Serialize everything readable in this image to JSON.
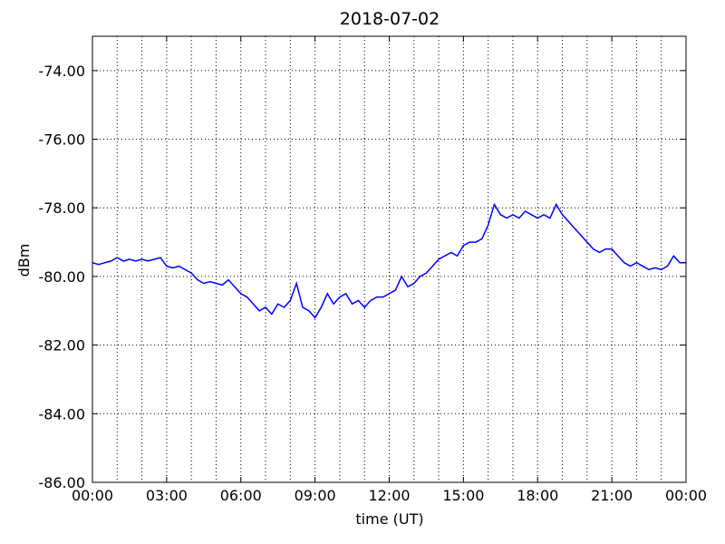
{
  "chart_data": {
    "type": "line",
    "title": "2018-07-02",
    "x_label": "time (UT)",
    "y_label": "dBm",
    "x": [
      0,
      0.25,
      0.5,
      0.75,
      1,
      1.25,
      1.5,
      1.75,
      2,
      2.25,
      2.5,
      2.75,
      3,
      3.25,
      3.5,
      3.75,
      4,
      4.25,
      4.5,
      4.75,
      5,
      5.25,
      5.5,
      5.75,
      6,
      6.25,
      6.5,
      6.75,
      7,
      7.25,
      7.5,
      7.75,
      8,
      8.25,
      8.5,
      8.75,
      9,
      9.25,
      9.5,
      9.75,
      10,
      10.25,
      10.5,
      10.75,
      11,
      11.25,
      11.5,
      11.75,
      12,
      12.25,
      12.5,
      12.75,
      13,
      13.25,
      13.5,
      13.75,
      14,
      14.25,
      14.5,
      14.75,
      15,
      15.25,
      15.5,
      15.75,
      16,
      16.25,
      16.5,
      16.75,
      17,
      17.25,
      17.5,
      17.75,
      18,
      18.25,
      18.5,
      18.75,
      19,
      19.25,
      19.5,
      19.75,
      20,
      20.25,
      20.5,
      20.75,
      21,
      21.25,
      21.5,
      21.75,
      22,
      22.25,
      22.5,
      22.75,
      23,
      23.25,
      23.5,
      23.75,
      24
    ],
    "series": [
      {
        "name": "dBm",
        "color": "#0000ff",
        "values": [
          -79.6,
          -79.65,
          -79.6,
          -79.55,
          -79.45,
          -79.55,
          -79.5,
          -79.55,
          -79.5,
          -79.55,
          -79.5,
          -79.45,
          -79.7,
          -79.75,
          -79.7,
          -79.8,
          -79.9,
          -80.1,
          -80.2,
          -80.15,
          -80.2,
          -80.25,
          -80.1,
          -80.3,
          -80.5,
          -80.6,
          -80.8,
          -81.0,
          -80.9,
          -81.1,
          -80.8,
          -80.9,
          -80.7,
          -80.2,
          -80.9,
          -81.0,
          -81.2,
          -80.9,
          -80.5,
          -80.8,
          -80.6,
          -80.5,
          -80.8,
          -80.7,
          -80.9,
          -80.7,
          -80.6,
          -80.6,
          -80.5,
          -80.4,
          -80.0,
          -80.3,
          -80.2,
          -80.0,
          -79.9,
          -79.7,
          -79.5,
          -79.4,
          -79.3,
          -79.4,
          -79.1,
          -79.0,
          -79.0,
          -78.9,
          -78.5,
          -77.9,
          -78.2,
          -78.3,
          -78.2,
          -78.3,
          -78.1,
          -78.2,
          -78.3,
          -78.2,
          -78.3,
          -77.9,
          -78.2,
          -78.4,
          -78.6,
          -78.8,
          -79.0,
          -79.2,
          -79.3,
          -79.2,
          -79.2,
          -79.4,
          -79.6,
          -79.7,
          -79.6,
          -79.7,
          -79.8,
          -79.75,
          -79.8,
          -79.7,
          -79.4,
          -79.6,
          -79.6
        ]
      }
    ],
    "xlim": [
      0,
      24
    ],
    "xticks": [
      {
        "value": 0,
        "label": "00:00"
      },
      {
        "value": 3,
        "label": "03:00"
      },
      {
        "value": 6,
        "label": "06:00"
      },
      {
        "value": 9,
        "label": "09:00"
      },
      {
        "value": 12,
        "label": "12:00"
      },
      {
        "value": 15,
        "label": "15:00"
      },
      {
        "value": 18,
        "label": "18:00"
      },
      {
        "value": 21,
        "label": "21:00"
      },
      {
        "value": 24,
        "label": "00:00"
      }
    ],
    "xminorticks": [
      1,
      2,
      4,
      5,
      7,
      8,
      10,
      11,
      13,
      14,
      16,
      17,
      19,
      20,
      22,
      23
    ],
    "ylim": [
      -86,
      -73
    ],
    "yticks": [
      {
        "value": -86,
        "label": "-86.00"
      },
      {
        "value": -84,
        "label": "-84.00"
      },
      {
        "value": -82,
        "label": "-82.00"
      },
      {
        "value": -80,
        "label": "-80.00"
      },
      {
        "value": -78,
        "label": "-78.00"
      },
      {
        "value": -76,
        "label": "-76.00"
      },
      {
        "value": -74,
        "label": "-74.00"
      }
    ],
    "grid": true
  }
}
